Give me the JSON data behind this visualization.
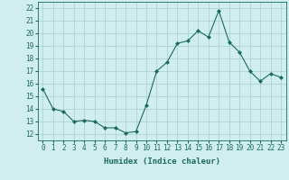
{
  "x": [
    0,
    1,
    2,
    3,
    4,
    5,
    6,
    7,
    8,
    9,
    10,
    11,
    12,
    13,
    14,
    15,
    16,
    17,
    18,
    19,
    20,
    21,
    22,
    23
  ],
  "y": [
    15.6,
    14.0,
    13.8,
    13.0,
    13.1,
    13.0,
    12.5,
    12.5,
    12.1,
    12.2,
    14.3,
    17.0,
    17.7,
    19.2,
    19.4,
    20.2,
    19.7,
    21.8,
    19.3,
    18.5,
    17.0,
    16.2,
    16.8,
    16.5
  ],
  "line_color": "#1a6b5a",
  "marker": "D",
  "marker_size": 2.0,
  "bg_color": "#d0eeee",
  "grid_color": "#aacccc",
  "xlabel": "Humidex (Indice chaleur)",
  "xlim": [
    -0.5,
    23.5
  ],
  "ylim": [
    11.5,
    22.5
  ],
  "yticks": [
    12,
    13,
    14,
    15,
    16,
    17,
    18,
    19,
    20,
    21,
    22
  ],
  "xticks": [
    0,
    1,
    2,
    3,
    4,
    5,
    6,
    7,
    8,
    9,
    10,
    11,
    12,
    13,
    14,
    15,
    16,
    17,
    18,
    19,
    20,
    21,
    22,
    23
  ],
  "tick_fontsize": 5.5,
  "label_fontsize": 6.5
}
